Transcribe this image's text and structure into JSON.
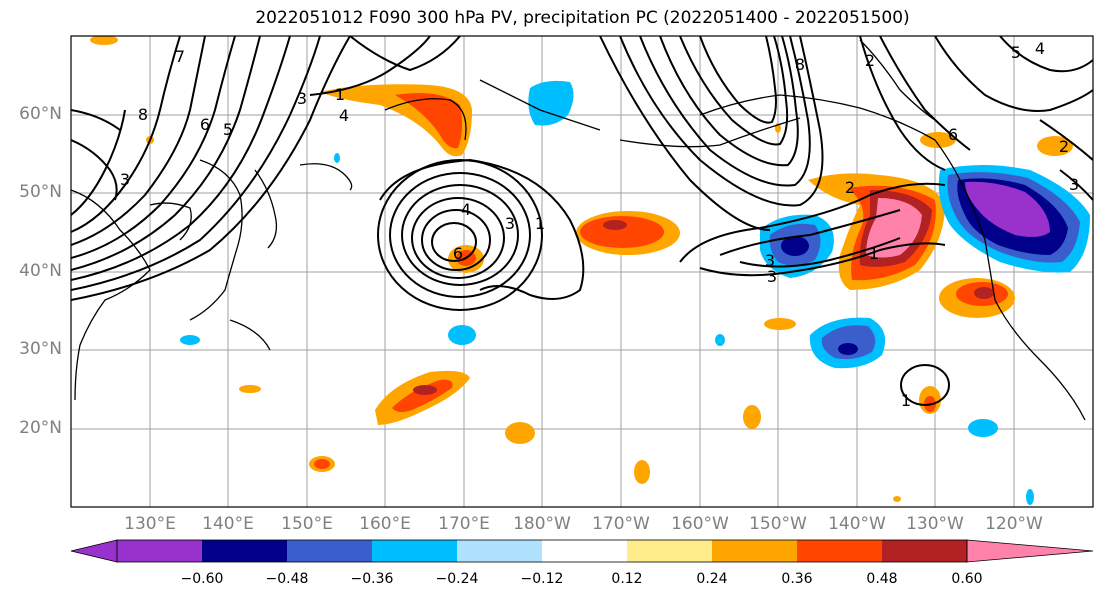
{
  "title": "2022051012 F090 300 hPa PV, precipitation PC (2022051400 - 2022051500)",
  "lat_labels": [
    "60°N",
    "50°N",
    "40°N",
    "30°N",
    "20°N"
  ],
  "lon_labels": [
    "130°E",
    "140°E",
    "150°E",
    "160°E",
    "170°E",
    "180°W",
    "170°W",
    "160°W",
    "150°W",
    "140°W",
    "130°W",
    "120°W"
  ],
  "colorbar": {
    "ticks": [
      "−0.60",
      "−0.48",
      "−0.36",
      "−0.24",
      "−0.12",
      "0.12",
      "0.24",
      "0.36",
      "0.48",
      "0.60"
    ],
    "colors": [
      "#9932cc",
      "#00008b",
      "#3a5fcd",
      "#00bfff",
      "#b0e2ff",
      "#ffffff",
      "#ffec8b",
      "#ffa500",
      "#ff4500",
      "#b22222",
      "#ff82ab"
    ]
  },
  "contour_labels": [
    {
      "text": "7",
      "role": "pv"
    },
    {
      "text": "6",
      "role": "pv"
    },
    {
      "text": "5",
      "role": "pv"
    },
    {
      "text": "3",
      "role": "pv"
    },
    {
      "text": "4",
      "role": "pv"
    },
    {
      "text": "8",
      "role": "pv"
    },
    {
      "text": "1",
      "role": "pv"
    },
    {
      "text": "3",
      "role": "pv"
    },
    {
      "text": "6",
      "role": "pv"
    },
    {
      "text": "4",
      "role": "pv"
    },
    {
      "text": "3",
      "role": "pv"
    },
    {
      "text": "1",
      "role": "pv"
    },
    {
      "text": "8",
      "role": "pv"
    },
    {
      "text": "2",
      "role": "pv"
    },
    {
      "text": "3",
      "role": "pv"
    },
    {
      "text": "1",
      "role": "pv"
    },
    {
      "text": "1",
      "role": "pv"
    },
    {
      "text": "3",
      "role": "pv"
    },
    {
      "text": "5",
      "role": "pv"
    },
    {
      "text": "2",
      "role": "pv"
    },
    {
      "text": "6",
      "role": "pv"
    },
    {
      "text": "2",
      "role": "pv"
    },
    {
      "text": "3",
      "role": "pv"
    },
    {
      "text": "4",
      "role": "pv"
    }
  ]
}
